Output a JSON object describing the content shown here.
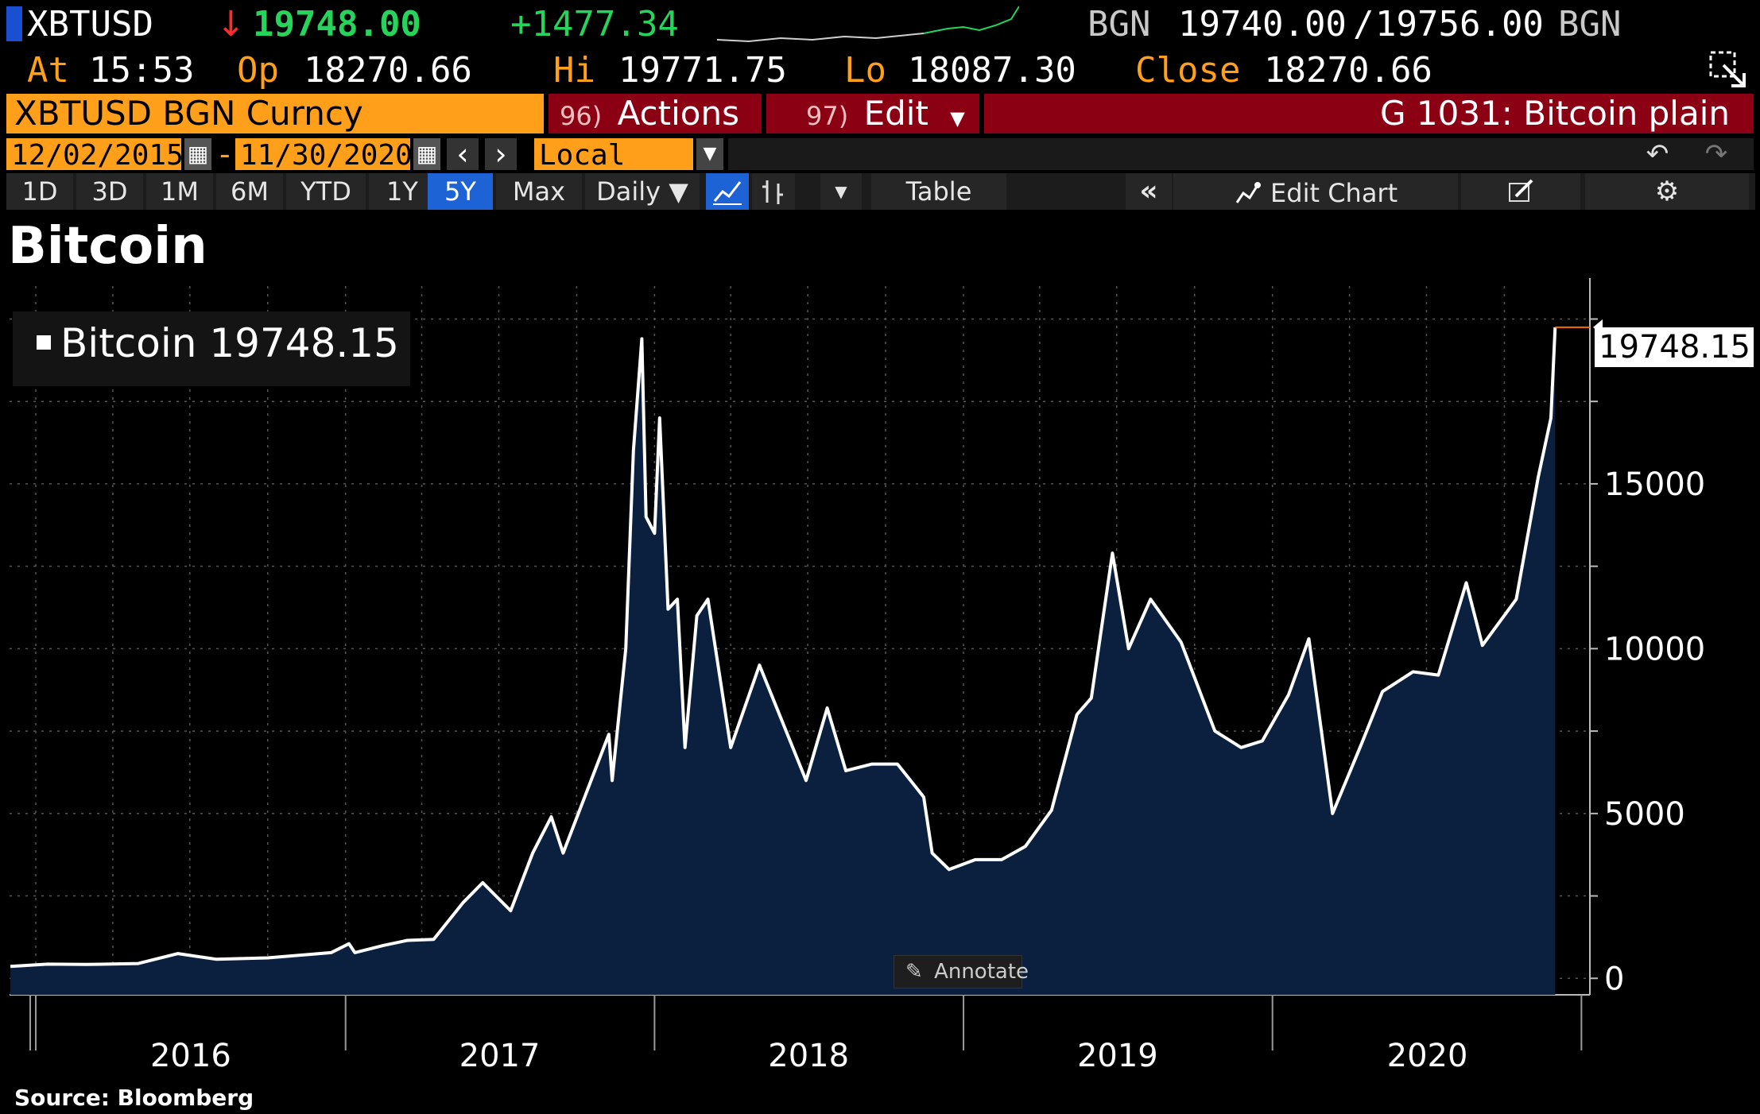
{
  "quote": {
    "ticker": "XBTUSD",
    "down_arrow": "↓",
    "last": "19748.00",
    "change": "+1477.34",
    "bid_src": "BGN",
    "bid": "19740.00",
    "slash": "/",
    "ask": "19756.00",
    "ask_src": "BGN",
    "at_label": "At",
    "at_time": "15:53",
    "op_label": "Op",
    "op": "18270.66",
    "hi_label": "Hi",
    "hi": "19771.75",
    "lo_label": "Lo",
    "lo": "18087.30",
    "close_label": "Close",
    "close": "18270.66"
  },
  "toolbar": {
    "security": "XBTUSD BGN Curncy",
    "actions_num": "96)",
    "actions_label": "Actions",
    "edit_num": "97)",
    "edit_label": "Edit",
    "function_title": "G 1031: Bitcoin plain",
    "date_from": "12/02/2015",
    "dash": "-",
    "date_to": "11/30/2020",
    "currency": "Local CCY",
    "ranges": [
      "1D",
      "3D",
      "1M",
      "6M",
      "YTD",
      "1Y",
      "5Y",
      "Max"
    ],
    "active_range": "5Y",
    "frequency": "Daily ▼",
    "table_label": "Table",
    "edit_chart_label": "Edit Chart",
    "colors": {
      "orange": "#ff9f1a",
      "red_bar": "#8c0014",
      "active_blue": "#1e63d6"
    },
    "icons": [
      "calendar-icon",
      "chevron-left-icon",
      "chevron-right-icon",
      "dropdown-arrow-icon",
      "undo-icon",
      "redo-icon",
      "line-chart-icon",
      "bar-chart-icon",
      "double-chevron-left-icon",
      "edit-chart-icon",
      "annotate-pencil-icon",
      "gear-icon",
      "popout-icon"
    ]
  },
  "chart_title": "Bitcoin",
  "legend_label": "Bitcoin 19748.15",
  "last_value_label": "19748.15",
  "annotate_label": "Annotate",
  "source": "Source: Bloomberg",
  "chart_data": {
    "type": "area",
    "title": "Bitcoin",
    "xlabel": "",
    "ylabel": "",
    "ylim": [
      0,
      21000
    ],
    "x_ticks": [
      "2016",
      "2017",
      "2018",
      "2019",
      "2020"
    ],
    "y_ticks": [
      0,
      5000,
      10000,
      15000
    ],
    "grid": true,
    "legend_position": "top-left",
    "colors": {
      "line": "#ffffff",
      "fill": "#0b1f3e",
      "last_marker": "#ff6a00"
    },
    "series": [
      {
        "name": "Bitcoin",
        "x": [
          "2015-12-02",
          "2016-01-15",
          "2016-03-01",
          "2016-05-01",
          "2016-06-17",
          "2016-08-01",
          "2016-10-01",
          "2016-12-15",
          "2017-01-05",
          "2017-01-12",
          "2017-02-15",
          "2017-03-15",
          "2017-04-15",
          "2017-05-20",
          "2017-06-12",
          "2017-07-15",
          "2017-08-10",
          "2017-09-01",
          "2017-09-15",
          "2017-10-15",
          "2017-11-08",
          "2017-11-12",
          "2017-11-28",
          "2017-12-07",
          "2017-12-17",
          "2017-12-22",
          "2018-01-01",
          "2018-01-07",
          "2018-01-17",
          "2018-01-28",
          "2018-02-06",
          "2018-02-20",
          "2018-03-05",
          "2018-04-01",
          "2018-05-05",
          "2018-06-29",
          "2018-07-24",
          "2018-08-15",
          "2018-09-15",
          "2018-10-15",
          "2018-11-15",
          "2018-11-25",
          "2018-12-15",
          "2019-01-15",
          "2019-02-15",
          "2019-03-15",
          "2019-04-15",
          "2019-05-15",
          "2019-06-01",
          "2019-06-26",
          "2019-07-15",
          "2019-08-10",
          "2019-09-15",
          "2019-10-25",
          "2019-11-25",
          "2019-12-20",
          "2020-01-20",
          "2020-02-13",
          "2020-03-12",
          "2020-04-15",
          "2020-05-10",
          "2020-06-15",
          "2020-07-15",
          "2020-08-17",
          "2020-09-05",
          "2020-10-15",
          "2020-11-10",
          "2020-11-25",
          "2020-11-30"
        ],
        "values": [
          360,
          430,
          420,
          450,
          750,
          580,
          620,
          780,
          1050,
          780,
          1000,
          1150,
          1180,
          2300,
          2900,
          2050,
          3800,
          4900,
          3800,
          5800,
          7400,
          6000,
          10000,
          16000,
          19400,
          14000,
          13500,
          17000,
          11200,
          11500,
          7000,
          11000,
          11500,
          7000,
          9500,
          6000,
          8200,
          6300,
          6500,
          6500,
          5500,
          3800,
          3300,
          3600,
          3600,
          4000,
          5100,
          8000,
          8500,
          12900,
          10000,
          11500,
          10200,
          7500,
          7000,
          7200,
          8600,
          10300,
          5000,
          7100,
          8700,
          9300,
          9200,
          12000,
          10100,
          11500,
          15200,
          17000,
          19748.15
        ]
      }
    ]
  }
}
